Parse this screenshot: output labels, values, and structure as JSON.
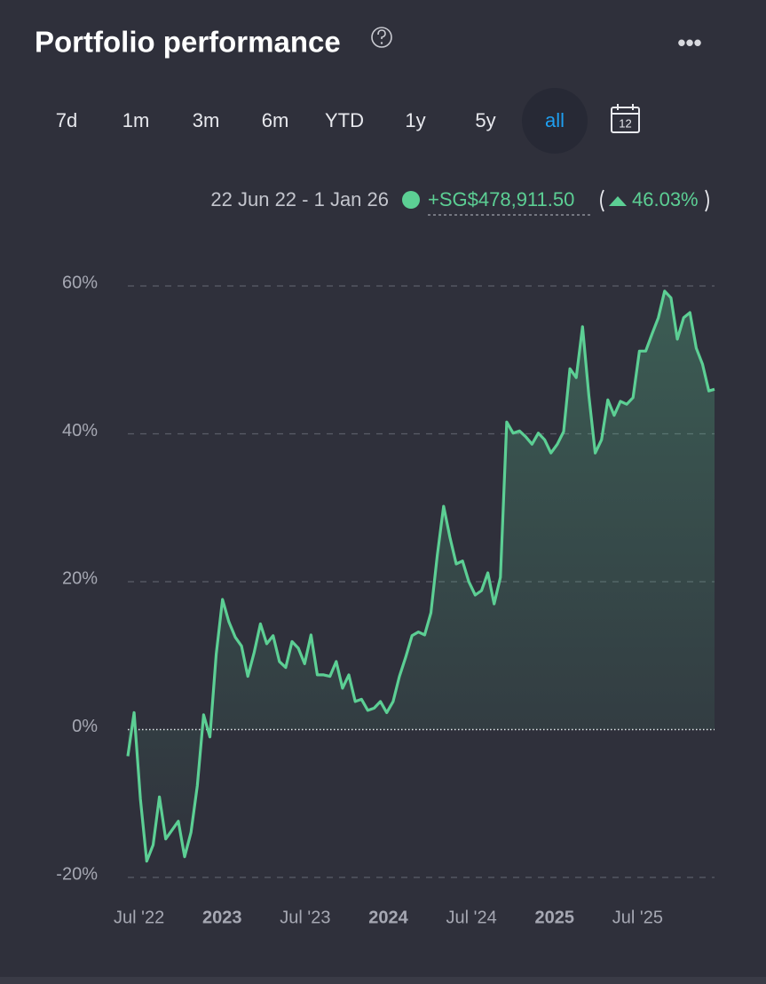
{
  "header": {
    "title": "Portfolio performance",
    "menu": "•••"
  },
  "range_buttons": [
    "7d",
    "1m",
    "3m",
    "6m",
    "YTD",
    "1y",
    "5y",
    "all"
  ],
  "selected_range": "all",
  "calendar_day": "12",
  "summary": {
    "date_range": "22 Jun 22 - 1 Jan 26",
    "gain": "+SG$478,911.50",
    "return": "46.03%"
  },
  "chart_data": {
    "type": "line",
    "color": "#5ccf94",
    "x": [
      2022.47,
      2022.508,
      2022.546,
      2022.584,
      2022.622,
      2022.66,
      2022.698,
      2022.736,
      2022.774,
      2022.812,
      2022.85,
      2022.888,
      2022.926,
      2022.964,
      2023.002,
      2023.04,
      2023.078,
      2023.116,
      2023.154,
      2023.192,
      2023.23,
      2023.268,
      2023.306,
      2023.344,
      2023.382,
      2023.42,
      2023.458,
      2023.496,
      2023.534,
      2023.572,
      2023.61,
      2023.648,
      2023.686,
      2023.724,
      2023.762,
      2023.8,
      2023.838,
      2023.876,
      2023.914,
      2023.952,
      2023.99,
      2024.028,
      2024.066,
      2024.104,
      2024.142,
      2024.18,
      2024.218,
      2024.256,
      2024.294,
      2024.332,
      2024.37,
      2024.408,
      2024.446,
      2024.484,
      2024.522,
      2024.56,
      2024.598,
      2024.636,
      2024.674,
      2024.712,
      2024.75,
      2024.788,
      2024.826,
      2024.864,
      2024.902,
      2024.94,
      2024.978,
      2025.016,
      2025.054,
      2025.092,
      2025.13,
      2025.168,
      2025.206,
      2025.244,
      2025.282,
      2025.32,
      2025.358,
      2025.396,
      2025.434,
      2025.472,
      2025.51,
      2025.548,
      2025.586,
      2025.624,
      2025.662,
      2025.7,
      2025.738,
      2025.776,
      2025.814,
      2025.852,
      2025.89,
      2025.928,
      2025.966,
      2026.0
    ],
    "values": [
      -3.6,
      2.3,
      -9.4,
      -17.8,
      -15.6,
      -9.1,
      -14.8,
      -13.6,
      -12.4,
      -17.2,
      -13.9,
      -7.6,
      2.0,
      -1.0,
      10.2,
      17.6,
      14.6,
      12.5,
      11.3,
      7.2,
      10.4,
      14.3,
      11.6,
      12.7,
      9.2,
      8.4,
      11.9,
      11.0,
      8.9,
      12.8,
      7.4,
      7.4,
      7.2,
      9.2,
      5.6,
      7.4,
      3.8,
      4.1,
      2.6,
      2.9,
      3.8,
      2.3,
      3.8,
      7.2,
      9.8,
      12.7,
      13.2,
      12.8,
      15.8,
      23.6,
      30.2,
      26.0,
      22.4,
      22.8,
      20.0,
      18.2,
      18.8,
      21.2,
      17.0,
      20.6,
      41.6,
      40.1,
      40.4,
      39.6,
      38.6,
      40.1,
      39.2,
      37.4,
      38.6,
      40.3,
      48.8,
      47.6,
      54.5,
      45.2,
      37.4,
      39.2,
      44.6,
      42.5,
      44.4,
      44.0,
      44.9,
      51.2,
      51.2,
      53.5,
      55.7,
      59.3,
      58.4,
      52.8,
      55.7,
      56.4,
      51.6,
      49.4,
      45.8,
      46.03
    ],
    "xlim": [
      2022.47,
      2026.0
    ],
    "xticks": [
      {
        "value": 2022.5,
        "label": "Jul '22"
      },
      {
        "value": 2023,
        "label": "2023"
      },
      {
        "value": 2023.5,
        "label": "Jul '23"
      },
      {
        "value": 2024,
        "label": "2024"
      },
      {
        "value": 2024.5,
        "label": "Jul '24"
      },
      {
        "value": 2025,
        "label": "2025"
      },
      {
        "value": 2025.5,
        "label": "Jul '25"
      }
    ],
    "ylim": [
      -20,
      60
    ],
    "yticks": [
      {
        "value": -20,
        "label": "-20%"
      },
      {
        "value": 0,
        "label": "0%"
      },
      {
        "value": 20,
        "label": "20%"
      },
      {
        "value": 40,
        "label": "40%"
      },
      {
        "value": 60,
        "label": "60%"
      }
    ],
    "grid": true
  }
}
